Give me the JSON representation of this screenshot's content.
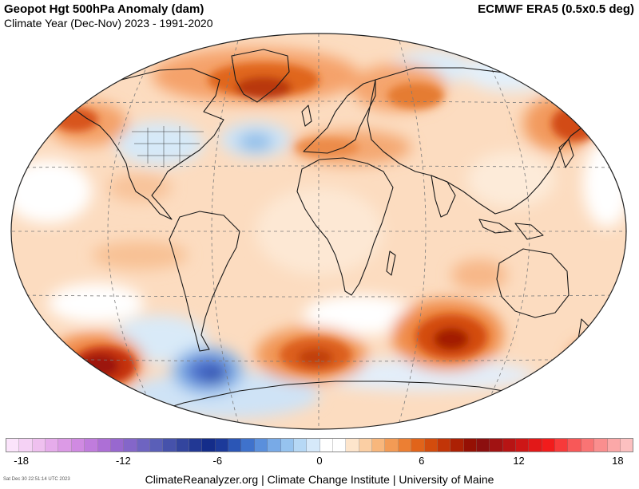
{
  "header": {
    "title": "Geopot Hgt 500hPa Anomaly (dam)",
    "subtitle": "Climate Year (Dec-Nov) 2023 - 1991-2020",
    "dataset": "ECMWF ERA5 (0.5x0.5 deg)"
  },
  "colorbar": {
    "ticks": [
      "-18",
      "-12",
      "-6",
      "0",
      "6",
      "12",
      "18"
    ],
    "colors": [
      "#fbe4fb",
      "#f5d2f5",
      "#efc0ef",
      "#e6aceb",
      "#dc9ae6",
      "#d08ae2",
      "#c07cdd",
      "#ad6fd6",
      "#9868cf",
      "#8466c9",
      "#6e64c1",
      "#5a5fb8",
      "#4652ab",
      "#33459e",
      "#223894",
      "#142d8a",
      "#1c3a9a",
      "#2b56b6",
      "#3f72cc",
      "#5a8fdc",
      "#78aae7",
      "#96c3ef",
      "#b6d8f5",
      "#d6e9fa",
      "#ffffff",
      "#ffffff",
      "#fde5cc",
      "#fbcfa4",
      "#f8b77c",
      "#f39b55",
      "#ec7f33",
      "#e1641a",
      "#d34c0d",
      "#c23508",
      "#ac2004",
      "#951004",
      "#8c0f0f",
      "#a11212",
      "#b71414",
      "#cd1616",
      "#e21818",
      "#f21c1c",
      "#f73a3a",
      "#f85858",
      "#f97474",
      "#fa8e8e",
      "#fba8a8",
      "#fcc0c0"
    ]
  },
  "map": {
    "projection": "Robinson",
    "variable": "500hPa geopotential height anomaly",
    "anomaly_colors": {
      "strong_positive": "#a51a04",
      "moderate_positive": "#e0661c",
      "weak_positive": "#fbd2ab",
      "neutral": "#ffffff",
      "weak_negative": "#cfe6f7",
      "moderate_negative": "#7fb1e6",
      "strong_negative": "#3a5fc2"
    }
  },
  "footer": {
    "timestamp": "Sat Dec 30 22:51:14 UTC 2023",
    "credit": "ClimateReanalyzer.org | Climate Change Institute | University of Maine"
  }
}
